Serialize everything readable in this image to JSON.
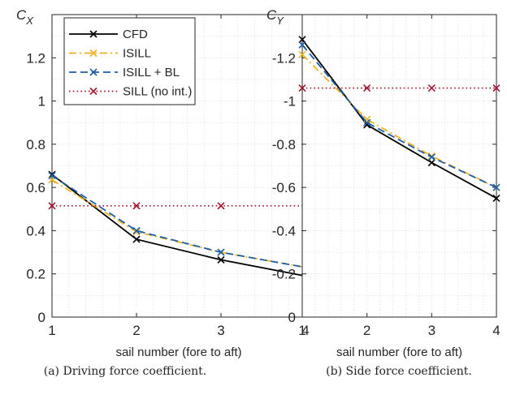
{
  "chart_data": [
    {
      "type": "line",
      "caption": "(a) Driving force coefficient.",
      "ylabel_main": "C",
      "ylabel_sub": "X",
      "xlabel": "sail number (fore to aft)",
      "x": [
        1,
        2,
        3,
        4
      ],
      "xlim": [
        1,
        4
      ],
      "ylim": [
        0,
        1.4
      ],
      "yticks": [
        0,
        0.2,
        0.4,
        0.6,
        0.8,
        1,
        1.2
      ],
      "ytick_labels": [
        "0",
        "0.2",
        "0.4",
        "0.6",
        "0.8",
        "1",
        "1.2"
      ],
      "xtick_labels": [
        "1",
        "2",
        "3",
        "4"
      ],
      "grid": "minor dotted",
      "legend_position": "top-right",
      "series": [
        {
          "name": "CFD",
          "values": [
            0.66,
            0.36,
            0.265,
            0.19
          ],
          "color": "#000000",
          "style": "solid"
        },
        {
          "name": "ISILL",
          "values": [
            0.635,
            0.395,
            0.3,
            0.23
          ],
          "color": "#EDB120",
          "style": "dashdot"
        },
        {
          "name": "ISILL + BL",
          "values": [
            0.655,
            0.4,
            0.3,
            0.23
          ],
          "color": "#1f5fa5",
          "style": "dashed"
        },
        {
          "name": "SILL (no int.)",
          "values": [
            0.515,
            0.515,
            0.515,
            0.515
          ],
          "color": "#A2142F",
          "style": "dotted"
        }
      ]
    },
    {
      "type": "line",
      "caption": "(b) Side force coefficient.",
      "ylabel_main": "C",
      "ylabel_sub": "Y",
      "xlabel": "sail number (fore to aft)",
      "x": [
        1,
        2,
        3,
        4
      ],
      "xlim": [
        1,
        4
      ],
      "ylim": [
        0,
        -1.4
      ],
      "yticks": [
        0,
        -0.2,
        -0.4,
        -0.6,
        -0.8,
        -1,
        -1.2
      ],
      "ytick_labels": [
        "0",
        "-0.2",
        "-0.4",
        "-0.6",
        "-0.8",
        "-1",
        "-1.2"
      ],
      "xtick_labels": [
        "1",
        "2",
        "3",
        "4"
      ],
      "grid": "minor dotted",
      "series": [
        {
          "name": "CFD",
          "values": [
            -1.285,
            -0.89,
            -0.715,
            -0.55
          ],
          "color": "#000000",
          "style": "solid"
        },
        {
          "name": "ISILL",
          "values": [
            -1.215,
            -0.915,
            -0.745,
            -0.6
          ],
          "color": "#EDB120",
          "style": "dashdot"
        },
        {
          "name": "ISILL + BL",
          "values": [
            -1.26,
            -0.9,
            -0.74,
            -0.6
          ],
          "color": "#1f5fa5",
          "style": "dashed"
        },
        {
          "name": "SILL (no int.)",
          "values": [
            -1.06,
            -1.06,
            -1.06,
            -1.06
          ],
          "color": "#A2142F",
          "style": "dotted"
        }
      ]
    }
  ]
}
